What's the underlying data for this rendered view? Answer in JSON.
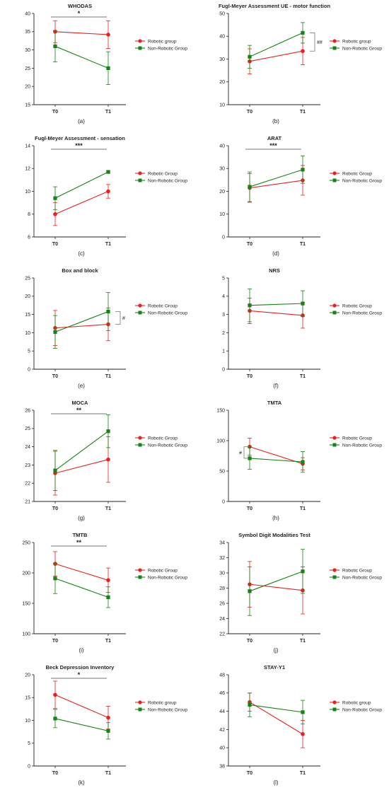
{
  "colors": {
    "robotic": "#e8211f",
    "non_robotic": "#168316",
    "axis": "#222222"
  },
  "chart_data": [
    {
      "type": "line",
      "title": "WHODAS",
      "caption": "(a)",
      "categories": [
        "T0",
        "T1"
      ],
      "ylim": [
        15,
        40
      ],
      "yticks": [
        "15",
        "20",
        "25",
        "30",
        "35",
        "40"
      ],
      "series": [
        {
          "name": "Robotic group",
          "values": [
            35,
            34.2
          ],
          "err": [
            3,
            3.8
          ]
        },
        {
          "name": "Non-Robotic Group",
          "values": [
            31,
            25
          ],
          "err": [
            4.3,
            4.5
          ]
        }
      ],
      "annotation": {
        "text": "*",
        "kind": "bar"
      }
    },
    {
      "type": "line",
      "title": "Fugl-Meyer Assessment UE - motor function",
      "caption": "(b)",
      "categories": [
        "T0",
        "T1"
      ],
      "ylim": [
        10,
        50
      ],
      "yticks": [
        "10",
        "20",
        "30",
        "40",
        "50"
      ],
      "series": [
        {
          "name": "Robotic group",
          "values": [
            29,
            33.5
          ],
          "err": [
            5.5,
            6
          ]
        },
        {
          "name": "Non-Robotic Group",
          "values": [
            31,
            41.5
          ],
          "err": [
            5,
            4.5
          ]
        }
      ],
      "annotation": {
        "text": "##",
        "kind": "bracket"
      }
    },
    {
      "type": "line",
      "title": "Fugl-Meyer Assessment - sensation",
      "caption": "(c)",
      "categories": [
        "T0",
        "T1"
      ],
      "ylim": [
        6,
        14
      ],
      "yticks": [
        "6",
        "8",
        "10",
        "12",
        "14"
      ],
      "series": [
        {
          "name": "Robotic Group",
          "values": [
            8,
            10
          ],
          "err": [
            1,
            0.6
          ]
        },
        {
          "name": "Non-Robotic Group",
          "values": [
            9.4,
            11.7
          ],
          "err": [
            1,
            0.1
          ]
        }
      ],
      "annotation": {
        "text": "***",
        "kind": "bar"
      }
    },
    {
      "type": "line",
      "title": "ARAT",
      "caption": "(d)",
      "categories": [
        "T0",
        "T1"
      ],
      "ylim": [
        0,
        40
      ],
      "yticks": [
        "0",
        "10",
        "20",
        "30",
        "40"
      ],
      "series": [
        {
          "name": "Robotic Group",
          "values": [
            21.5,
            24.8
          ],
          "err": [
            6.3,
            6.5
          ]
        },
        {
          "name": "Non-Robotic Group",
          "values": [
            22,
            29.5
          ],
          "err": [
            6.5,
            6
          ]
        }
      ],
      "annotation": {
        "text": "***",
        "kind": "bar"
      }
    },
    {
      "type": "line",
      "title": "Box and block",
      "caption": "(e)",
      "categories": [
        "T0",
        "T1"
      ],
      "ylim": [
        0,
        25
      ],
      "yticks": [
        "0",
        "5",
        "10",
        "15",
        "20",
        "25"
      ],
      "series": [
        {
          "name": "Robotic Group",
          "values": [
            11.3,
            12.3
          ],
          "err": [
            4.8,
            4.5
          ]
        },
        {
          "name": "Non-Robotic Group",
          "values": [
            10.2,
            15.8
          ],
          "err": [
            4.5,
            5.2
          ]
        }
      ],
      "annotation": {
        "text": "#",
        "kind": "bracket"
      }
    },
    {
      "type": "line",
      "title": "NRS",
      "caption": "(f)",
      "categories": [
        "T0",
        "T1"
      ],
      "ylim": [
        0,
        5
      ],
      "yticks": [
        "0",
        "1",
        "2",
        "3",
        "4",
        "5"
      ],
      "series": [
        {
          "name": "Robotic Group",
          "values": [
            3.2,
            2.95
          ],
          "err": [
            0.7,
            0.7
          ]
        },
        {
          "name": "Non-Robotic Group",
          "values": [
            3.5,
            3.6
          ],
          "err": [
            0.9,
            0.7
          ]
        }
      ],
      "annotation": null
    },
    {
      "type": "line",
      "title": "MOCA",
      "caption": "(g)",
      "categories": [
        "T0",
        "T1"
      ],
      "ylim": [
        21,
        26
      ],
      "yticks": [
        "21",
        "22",
        "23",
        "24",
        "25",
        "26"
      ],
      "series": [
        {
          "name": "Robotic Group",
          "values": [
            22.55,
            23.3
          ],
          "err": [
            1.2,
            1.25
          ]
        },
        {
          "name": "Non-Robotic Group",
          "values": [
            22.7,
            24.85
          ],
          "err": [
            1.1,
            0.9
          ]
        }
      ],
      "annotation": {
        "text": "**",
        "kind": "bar"
      }
    },
    {
      "type": "line",
      "title": "TMTA",
      "caption": "(h)",
      "categories": [
        "T0",
        "T1"
      ],
      "ylim": [
        0,
        150
      ],
      "yticks": [
        "0",
        "50",
        "100",
        "150"
      ],
      "series": [
        {
          "name": "Robotic Group",
          "values": [
            90,
            62
          ],
          "err": [
            14,
            10
          ]
        },
        {
          "name": "Non-Robotic Group",
          "values": [
            71,
            65
          ],
          "err": [
            18,
            17
          ]
        }
      ],
      "annotation": {
        "text": "#",
        "kind": "bracket-left"
      }
    },
    {
      "type": "line",
      "title": "TMTB",
      "caption": "(i)",
      "categories": [
        "T0",
        "T1"
      ],
      "ylim": [
        100,
        250
      ],
      "yticks": [
        "100",
        "150",
        "200",
        "250"
      ],
      "series": [
        {
          "name": "Robotic Group",
          "values": [
            215,
            188
          ],
          "err": [
            20,
            20
          ]
        },
        {
          "name": "Non-Robotic Group",
          "values": [
            191,
            160
          ],
          "err": [
            25,
            17
          ]
        }
      ],
      "annotation": {
        "text": "**",
        "kind": "bar"
      }
    },
    {
      "type": "line",
      "title": "Symbol Digit Modalities Test",
      "caption": "(j)",
      "categories": [
        "T0",
        "T1"
      ],
      "ylim": [
        22,
        34
      ],
      "yticks": [
        "22",
        "24",
        "26",
        "28",
        "30",
        "32",
        "34"
      ],
      "series": [
        {
          "name": "Robotic Group",
          "values": [
            28.5,
            27.7
          ],
          "err": [
            3,
            3.1
          ]
        },
        {
          "name": "Non-Robotic Group",
          "values": [
            27.6,
            30.2
          ],
          "err": [
            3.2,
            2.9
          ]
        }
      ],
      "annotation": null
    },
    {
      "type": "line",
      "title": "Beck Depression Inventory",
      "caption": "(k)",
      "categories": [
        "T0",
        "T1"
      ],
      "ylim": [
        0,
        20
      ],
      "yticks": [
        "0",
        "5",
        "10",
        "15",
        "20"
      ],
      "series": [
        {
          "name": "Robotic group",
          "values": [
            15.6,
            10.6
          ],
          "err": [
            3,
            2.5
          ]
        },
        {
          "name": "Non-Robotic Group",
          "values": [
            10.4,
            7.7
          ],
          "err": [
            2,
            1.8
          ]
        }
      ],
      "annotation": {
        "text": "*",
        "kind": "bar"
      }
    },
    {
      "type": "line",
      "title": "STAY-Y1",
      "caption": "(l)",
      "categories": [
        "T0",
        "T1"
      ],
      "ylim": [
        38,
        48
      ],
      "yticks": [
        "38",
        "40",
        "42",
        "44",
        "46",
        "48"
      ],
      "series": [
        {
          "name": "Robotic group",
          "values": [
            45,
            41.5
          ],
          "err": [
            1,
            1.5
          ]
        },
        {
          "name": "Non-Robotic Group",
          "values": [
            44.7,
            43.9
          ],
          "err": [
            1.3,
            1.3
          ]
        }
      ],
      "annotation": null
    }
  ]
}
